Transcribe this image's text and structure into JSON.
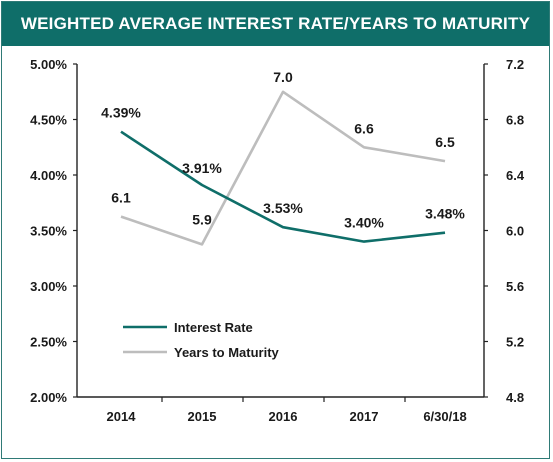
{
  "chart_data": {
    "type": "line",
    "title": "WEIGHTED AVERAGE INTEREST RATE/YEARS TO MATURITY",
    "categories": [
      "2014",
      "2015",
      "2016",
      "2017",
      "6/30/18"
    ],
    "series": [
      {
        "name": "Interest Rate",
        "axis": "left",
        "color": "#0f6e69",
        "values": [
          4.39,
          3.91,
          3.53,
          3.4,
          3.48
        ],
        "labels": [
          "4.39%",
          "3.91%",
          "3.53%",
          "3.40%",
          "3.48%"
        ]
      },
      {
        "name": "Years to Maturity",
        "axis": "right",
        "color": "#bdbdbd",
        "values": [
          6.1,
          5.9,
          7.0,
          6.6,
          6.5
        ],
        "labels": [
          "6.1",
          "5.9",
          "7.0",
          "6.6",
          "6.5"
        ]
      }
    ],
    "y_left": {
      "range": [
        2.0,
        5.0
      ],
      "ticks": [
        2.0,
        2.5,
        3.0,
        3.5,
        4.0,
        4.5,
        5.0
      ],
      "tick_labels": [
        "2.00%",
        "2.50%",
        "3.00%",
        "3.50%",
        "4.00%",
        "4.50%",
        "5.00%"
      ]
    },
    "y_right": {
      "range": [
        4.8,
        7.2
      ],
      "ticks": [
        4.8,
        5.2,
        5.6,
        6.0,
        6.4,
        6.8,
        7.2
      ],
      "tick_labels": [
        "4.8",
        "5.2",
        "5.6",
        "6.0",
        "6.4",
        "6.8",
        "7.2"
      ]
    },
    "grid": false,
    "legend": "bottom-left"
  }
}
